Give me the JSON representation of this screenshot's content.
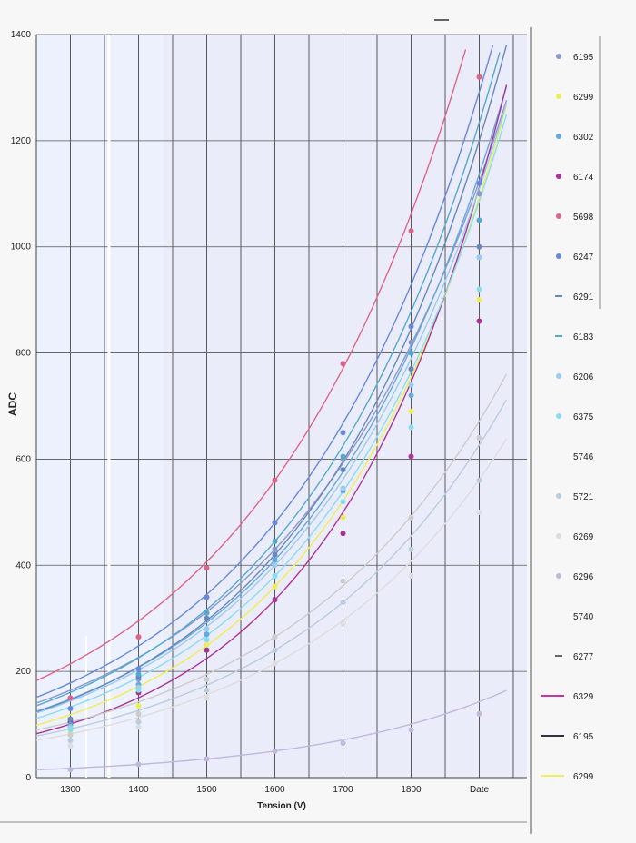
{
  "chart_data": {
    "type": "scatter",
    "xlabel": "Tension (V)",
    "ylabel": "ADC",
    "xlim": [
      1250,
      1970
    ],
    "ylim": [
      0,
      1400
    ],
    "x_ticks": [
      "1300",
      "1400",
      "1500",
      "1600",
      "1700",
      "1800",
      "Date"
    ],
    "x_tick_values": [
      1300,
      1400,
      1500,
      1600,
      1700,
      1800,
      1900
    ],
    "y_ticks": [
      0,
      200,
      400,
      600,
      800,
      1000,
      1200,
      1400
    ],
    "grid": true,
    "legend_position": "right",
    "x": [
      1300,
      1400,
      1500,
      1600,
      1700,
      1800,
      1900
    ],
    "series": [
      {
        "name": "6195",
        "marker": "diamond",
        "color": "#8899cc",
        "values": [
          110,
          185,
          300,
          430,
          600,
          820,
          1100
        ],
        "curve": [
          0.0032,
          1325
        ]
      },
      {
        "name": "6299",
        "marker": "triangle",
        "color": "#eeee55",
        "values": [
          85,
          135,
          250,
          360,
          490,
          690,
          900
        ],
        "curve": [
          0.0037,
          1310
        ]
      },
      {
        "name": "6302",
        "marker": "x",
        "color": "#66aadd",
        "values": [
          95,
          175,
          270,
          410,
          540,
          720,
          980
        ],
        "curve": [
          0.0034,
          1310
        ]
      },
      {
        "name": "6174",
        "marker": "star",
        "color": "#aa3399",
        "values": [
          105,
          160,
          240,
          335,
          460,
          605,
          860
        ],
        "curve": [
          0.004,
          1330
        ]
      },
      {
        "name": "5698",
        "marker": "circle",
        "color": "#dd6688",
        "values": [
          150,
          265,
          395,
          560,
          780,
          1030,
          1320
        ],
        "curve": [
          0.0032,
          1340
        ]
      },
      {
        "name": "6247",
        "marker": "plus",
        "color": "#6688dd",
        "values": [
          130,
          205,
          340,
          480,
          650,
          850,
          1120
        ],
        "curve": [
          0.0033,
          1335
        ]
      },
      {
        "name": "6291",
        "marker": "dash",
        "color": "#6688bb",
        "values": [
          110,
          190,
          300,
          420,
          580,
          770,
          1000
        ],
        "curve": [
          0.0035,
          1330
        ]
      },
      {
        "name": "6183",
        "marker": "dash",
        "color": "#55aacc",
        "values": [
          100,
          195,
          310,
          445,
          605,
          800,
          1050
        ],
        "curve": [
          0.0034,
          1325
        ]
      },
      {
        "name": "6206",
        "marker": "diamond",
        "color": "#99ccee",
        "values": [
          95,
          170,
          280,
          400,
          545,
          740,
          980
        ],
        "curve": [
          0.0034,
          1310
        ]
      },
      {
        "name": "6375",
        "marker": "square",
        "color": "#88ddee",
        "values": [
          90,
          165,
          260,
          380,
          520,
          660,
          920
        ],
        "curve": [
          0.0035,
          1300
        ]
      },
      {
        "name": "5746",
        "marker": "none",
        "color": "#cccccc",
        "values": [
          80,
          120,
          185,
          265,
          370,
          490,
          640
        ],
        "curve": [
          0.0031,
          1270
        ]
      },
      {
        "name": "5721",
        "marker": "x",
        "color": "#bbccdd",
        "values": [
          70,
          105,
          165,
          240,
          330,
          430,
          560
        ],
        "curve": [
          0.0032,
          1250
        ]
      },
      {
        "name": "6269",
        "marker": "diamond",
        "color": "#dddddd",
        "values": [
          60,
          95,
          150,
          215,
          290,
          380,
          500
        ],
        "curve": [
          0.0032,
          1230
        ]
      },
      {
        "name": "6296",
        "marker": "circle",
        "color": "#c0b8dd",
        "values": [
          15,
          25,
          35,
          50,
          65,
          90,
          120
        ],
        "curve": [
          0.0035,
          1200
        ]
      },
      {
        "name": "5740",
        "marker": "none",
        "color": "#ffffff",
        "values": []
      },
      {
        "name": "6277",
        "marker": "dash",
        "color": "#666666",
        "values": []
      },
      {
        "name": "6329",
        "marker": "line",
        "color": "#cc33aa",
        "values": []
      },
      {
        "name": "6195",
        "marker": "line",
        "color": "#333344",
        "values": []
      },
      {
        "name": "6299",
        "marker": "line",
        "color": "#eeee66",
        "values": []
      }
    ]
  }
}
